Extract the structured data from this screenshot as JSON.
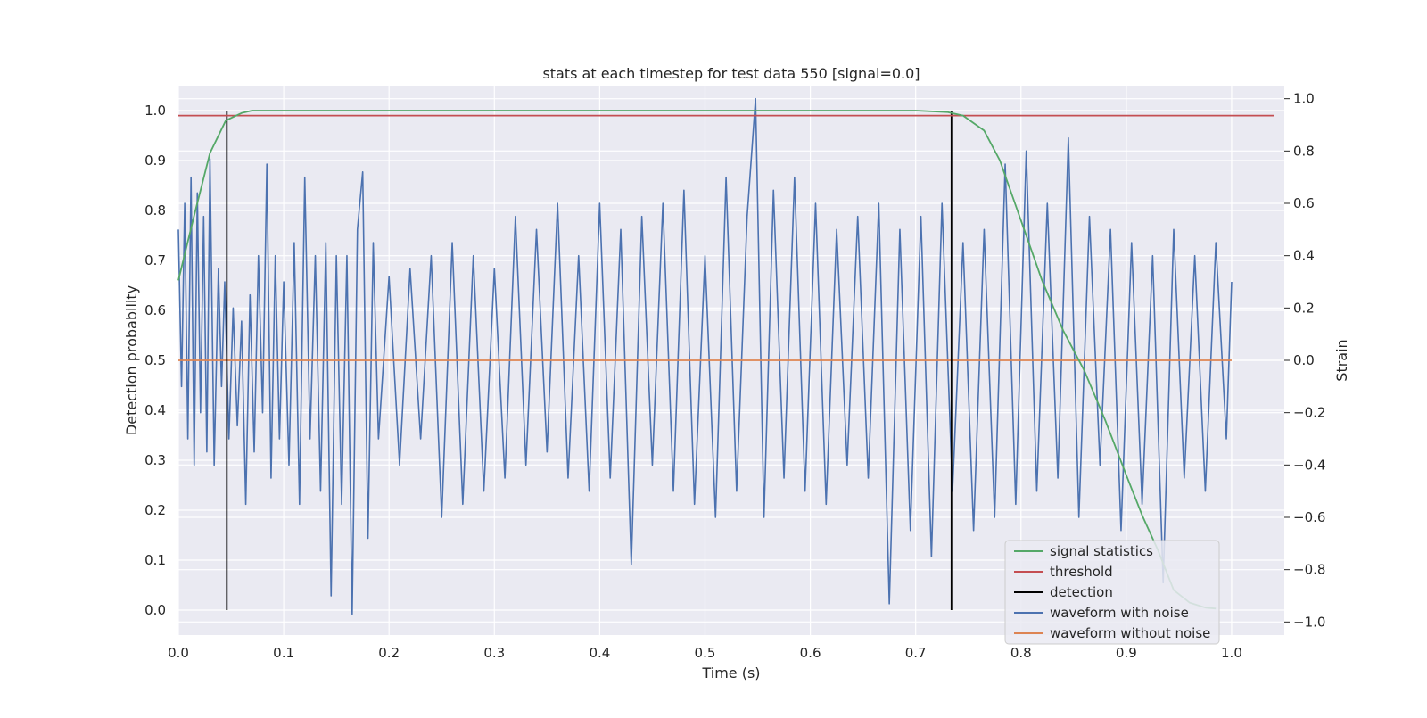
{
  "chart_data": {
    "type": "line",
    "title": "stats at each timestep for test data 550 [signal=0.0]",
    "xlabel": "Time (s)",
    "ylabel_left": "Detection probability",
    "ylabel_right": "Strain",
    "xlim": [
      0.0,
      1.05
    ],
    "ylim_left": [
      -0.05,
      1.05
    ],
    "ylim_right": [
      -1.05,
      1.05
    ],
    "grid": true,
    "legend_placement": "lower right",
    "x_ticks": [
      "0.0",
      "0.1",
      "0.2",
      "0.3",
      "0.4",
      "0.5",
      "0.6",
      "0.7",
      "0.8",
      "0.9",
      "1.0"
    ],
    "y_left_ticks": [
      "0.0",
      "0.1",
      "0.2",
      "0.3",
      "0.4",
      "0.5",
      "0.6",
      "0.7",
      "0.8",
      "0.9",
      "1.0"
    ],
    "y_right_ticks": [
      "−1.0",
      "−0.8",
      "−0.6",
      "−0.4",
      "−0.2",
      "0.0",
      "0.2",
      "0.4",
      "0.6",
      "0.8",
      "1.0"
    ],
    "colors": {
      "signal_statistics": "#55a868",
      "threshold": "#c44e52",
      "detection": "#000000",
      "waveform_with_noise": "#4c72b0",
      "waveform_without_noise": "#dd8452",
      "plot_background": "#eaeaf2",
      "grid": "#ffffff"
    },
    "series": [
      {
        "name": "signal statistics",
        "axis": "left",
        "x": [
          0.0,
          0.015,
          0.03,
          0.045,
          0.06,
          0.07,
          0.1,
          0.2,
          0.3,
          0.4,
          0.5,
          0.6,
          0.7,
          0.73,
          0.745,
          0.765,
          0.78,
          0.8,
          0.82,
          0.84,
          0.86,
          0.88,
          0.9,
          0.915,
          0.93,
          0.945,
          0.96,
          0.975,
          0.985
        ],
        "y": [
          0.66,
          0.79,
          0.915,
          0.98,
          0.995,
          1.0,
          1.0,
          1.0,
          1.0,
          1.0,
          1.0,
          1.0,
          1.0,
          0.997,
          0.99,
          0.96,
          0.9,
          0.78,
          0.66,
          0.56,
          0.48,
          0.38,
          0.27,
          0.19,
          0.12,
          0.04,
          0.015,
          0.005,
          0.003
        ]
      },
      {
        "name": "threshold",
        "axis": "left",
        "x": [
          0.0,
          1.04
        ],
        "y": [
          0.99,
          0.99
        ]
      },
      {
        "name": "detection",
        "axis": "left",
        "x": [
          0.046,
          0.046,
          null,
          0.734,
          0.734
        ],
        "y": [
          0.0,
          1.0,
          null,
          0.0,
          1.0
        ]
      },
      {
        "name": "waveform with noise",
        "axis": "right",
        "x": [
          0.0,
          0.003,
          0.006,
          0.009,
          0.012,
          0.015,
          0.018,
          0.021,
          0.024,
          0.027,
          0.03,
          0.034,
          0.038,
          0.041,
          0.044,
          0.048,
          0.052,
          0.056,
          0.06,
          0.064,
          0.068,
          0.072,
          0.076,
          0.08,
          0.084,
          0.088,
          0.092,
          0.096,
          0.1,
          0.105,
          0.11,
          0.115,
          0.12,
          0.125,
          0.13,
          0.135,
          0.14,
          0.145,
          0.15,
          0.155,
          0.16,
          0.165,
          0.17,
          0.175,
          0.18,
          0.185,
          0.19,
          0.2,
          0.21,
          0.22,
          0.23,
          0.24,
          0.25,
          0.26,
          0.27,
          0.28,
          0.29,
          0.3,
          0.31,
          0.32,
          0.33,
          0.34,
          0.35,
          0.36,
          0.37,
          0.38,
          0.39,
          0.4,
          0.41,
          0.42,
          0.43,
          0.44,
          0.45,
          0.46,
          0.47,
          0.48,
          0.49,
          0.5,
          0.51,
          0.52,
          0.53,
          0.54,
          0.548,
          0.556,
          0.565,
          0.575,
          0.585,
          0.595,
          0.605,
          0.615,
          0.625,
          0.635,
          0.645,
          0.655,
          0.665,
          0.675,
          0.685,
          0.695,
          0.705,
          0.715,
          0.725,
          0.735,
          0.745,
          0.755,
          0.765,
          0.775,
          0.785,
          0.795,
          0.805,
          0.815,
          0.825,
          0.835,
          0.845,
          0.855,
          0.865,
          0.875,
          0.885,
          0.895,
          0.905,
          0.915,
          0.925,
          0.935,
          0.945,
          0.955,
          0.965,
          0.975,
          0.985,
          0.995,
          1.0
        ],
        "y": [
          0.5,
          -0.1,
          0.6,
          -0.3,
          0.7,
          -0.4,
          0.64,
          -0.2,
          0.55,
          -0.35,
          0.77,
          -0.4,
          0.35,
          -0.1,
          0.3,
          -0.3,
          0.2,
          -0.25,
          0.15,
          -0.55,
          0.25,
          -0.35,
          0.4,
          -0.2,
          0.75,
          -0.45,
          0.4,
          -0.3,
          0.3,
          -0.4,
          0.45,
          -0.55,
          0.7,
          -0.3,
          0.4,
          -0.5,
          0.45,
          -0.9,
          0.4,
          -0.55,
          0.4,
          -0.97,
          0.5,
          0.72,
          -0.68,
          0.45,
          -0.3,
          0.32,
          -0.4,
          0.35,
          -0.3,
          0.4,
          -0.6,
          0.45,
          -0.55,
          0.4,
          -0.5,
          0.35,
          -0.45,
          0.55,
          -0.4,
          0.5,
          -0.35,
          0.6,
          -0.45,
          0.4,
          -0.5,
          0.6,
          -0.45,
          0.5,
          -0.78,
          0.55,
          -0.4,
          0.6,
          -0.5,
          0.65,
          -0.55,
          0.4,
          -0.6,
          0.7,
          -0.5,
          0.55,
          1.0,
          -0.6,
          0.65,
          -0.45,
          0.7,
          -0.5,
          0.6,
          -0.55,
          0.5,
          -0.4,
          0.55,
          -0.45,
          0.6,
          -0.93,
          0.5,
          -0.65,
          0.55,
          -0.75,
          0.6,
          -0.5,
          0.45,
          -0.65,
          0.5,
          -0.6,
          0.75,
          -0.55,
          0.8,
          -0.5,
          0.6,
          -0.45,
          0.85,
          -0.6,
          0.55,
          -0.4,
          0.5,
          -0.65,
          0.45,
          -0.55,
          0.4,
          -0.85,
          0.5,
          -0.45,
          0.4,
          -0.5,
          0.45,
          -0.3,
          0.3
        ]
      },
      {
        "name": "waveform without noise",
        "axis": "right",
        "x": [
          0.0,
          1.0
        ],
        "y": [
          0.0,
          0.0
        ]
      }
    ]
  },
  "legend": {
    "items": [
      {
        "label": "signal statistics",
        "color": "#55a868"
      },
      {
        "label": "threshold",
        "color": "#c44e52"
      },
      {
        "label": "detection",
        "color": "#000000"
      },
      {
        "label": "waveform with noise",
        "color": "#4c72b0"
      },
      {
        "label": "waveform without noise",
        "color": "#dd8452"
      }
    ]
  }
}
